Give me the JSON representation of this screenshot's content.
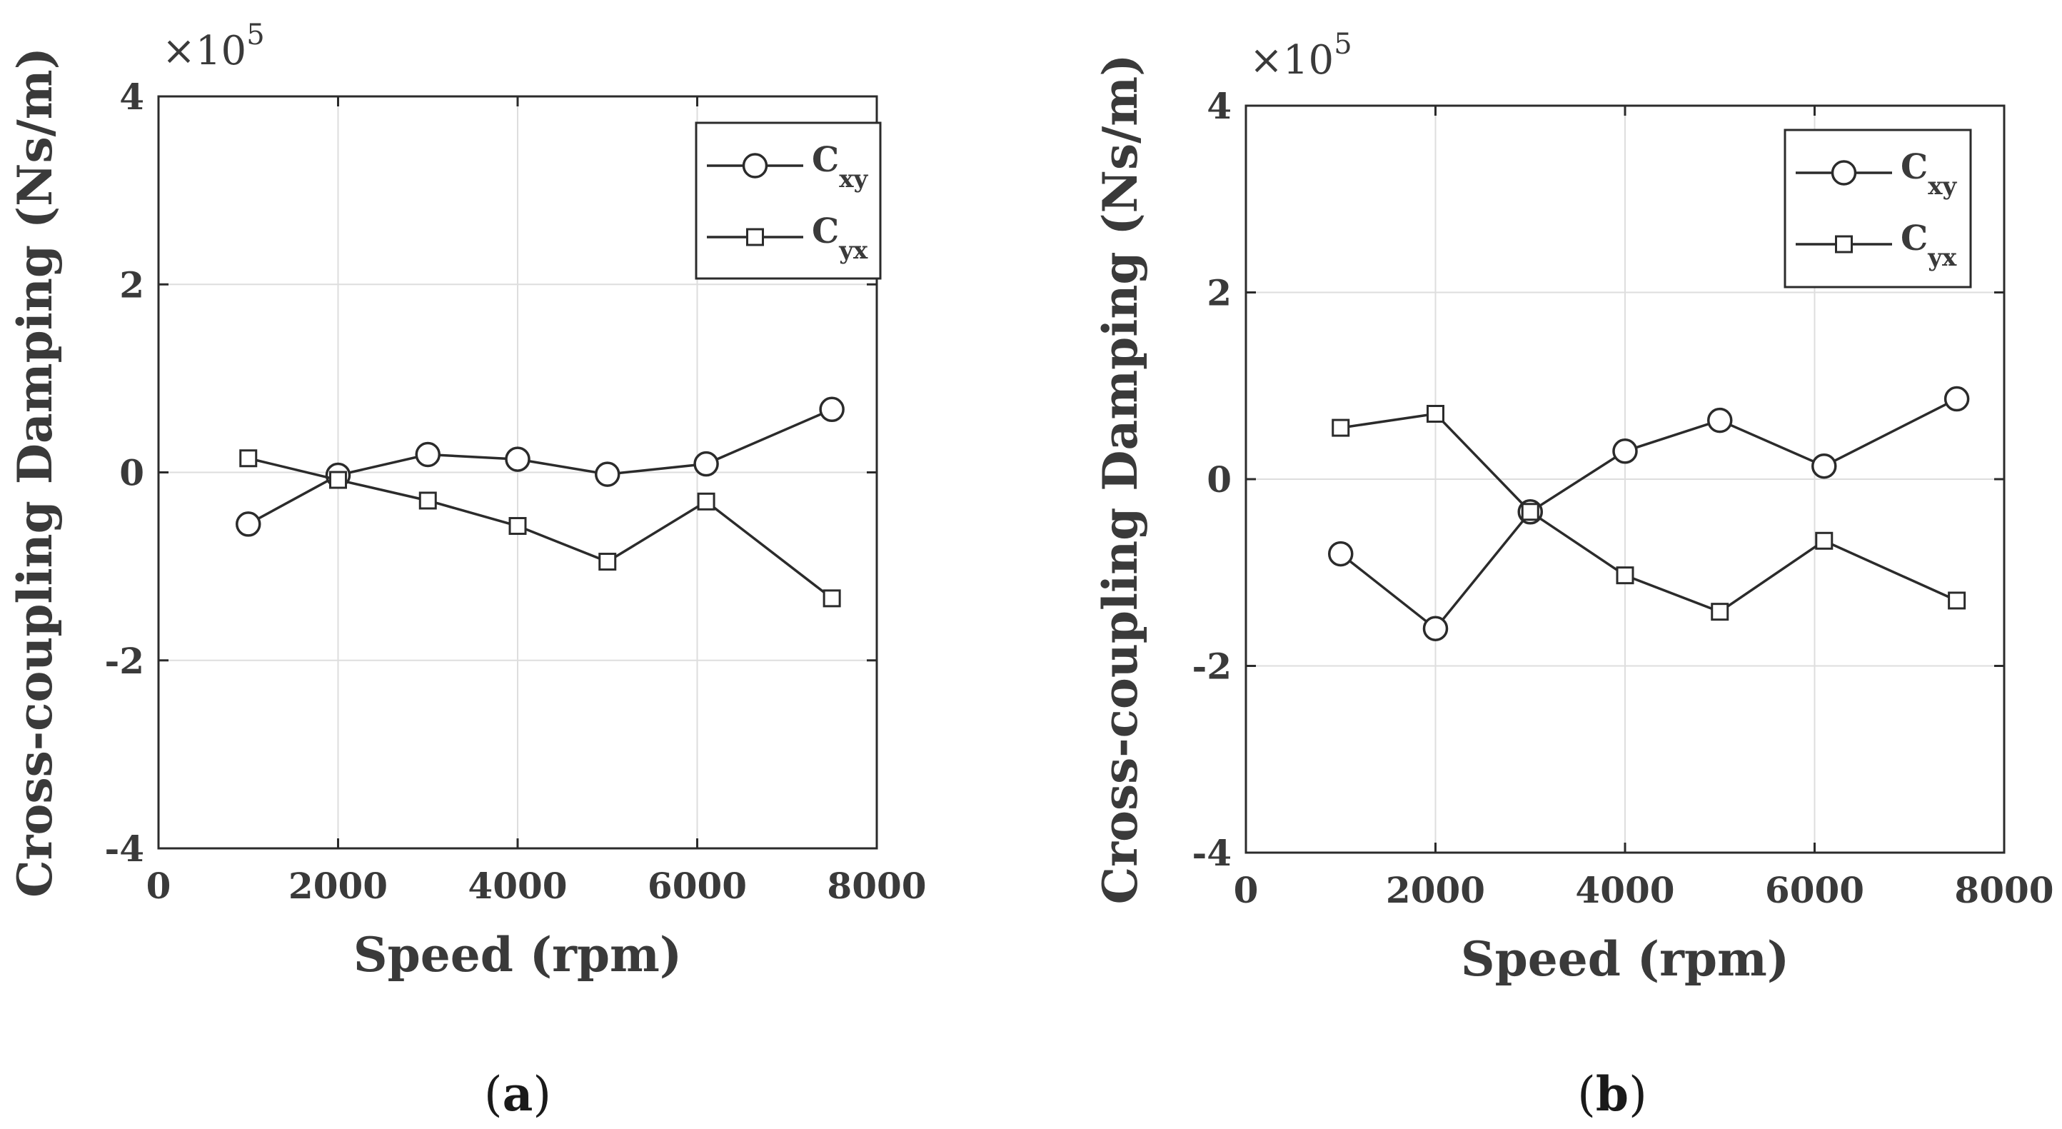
{
  "chart_data": [
    {
      "type": "line",
      "panel": "a",
      "caption_open": "(",
      "caption_letter": "a",
      "caption_close": ")",
      "xlabel": "Speed (rpm)",
      "ylabel": "Cross-coupling Damping (Ns/m)",
      "exponent_label": "×10",
      "exponent_power": "5",
      "xlim": [
        0,
        8000
      ],
      "ylim": [
        -4,
        4
      ],
      "xticks": [
        0,
        2000,
        4000,
        6000,
        8000
      ],
      "yticks": [
        -4,
        -2,
        0,
        2,
        4
      ],
      "grid": true,
      "legend_position": "top-right",
      "series": [
        {
          "name": "C",
          "sub": "xy",
          "marker": "circle",
          "x": [
            1000,
            2000,
            3000,
            4000,
            5000,
            6100,
            7500
          ],
          "y": [
            -0.55,
            -0.03,
            0.19,
            0.14,
            -0.02,
            0.09,
            0.67
          ]
        },
        {
          "name": "C",
          "sub": "yx",
          "marker": "square",
          "x": [
            1000,
            2000,
            3000,
            4000,
            5000,
            6100,
            7500
          ],
          "y": [
            0.15,
            -0.08,
            -0.3,
            -0.57,
            -0.95,
            -0.31,
            -1.34
          ]
        }
      ]
    },
    {
      "type": "line",
      "panel": "b",
      "caption_open": "(",
      "caption_letter": "b",
      "caption_close": ")",
      "xlabel": "Speed (rpm)",
      "ylabel": "Cross-coupling Damping (Ns/m)",
      "exponent_label": "×10",
      "exponent_power": "5",
      "xlim": [
        0,
        8000
      ],
      "ylim": [
        -4,
        4
      ],
      "xticks": [
        0,
        2000,
        4000,
        6000,
        8000
      ],
      "yticks": [
        -4,
        -2,
        0,
        2,
        4
      ],
      "grid": true,
      "legend_position": "top-right",
      "series": [
        {
          "name": "C",
          "sub": "xy",
          "marker": "circle",
          "x": [
            1000,
            2000,
            3000,
            4000,
            5000,
            6100,
            7500
          ],
          "y": [
            -0.8,
            -1.6,
            -0.35,
            0.3,
            0.63,
            0.14,
            0.86
          ]
        },
        {
          "name": "C",
          "sub": "yx",
          "marker": "square",
          "x": [
            1000,
            2000,
            3000,
            4000,
            5000,
            6100,
            7500
          ],
          "y": [
            0.55,
            0.7,
            -0.35,
            -1.03,
            -1.42,
            -0.66,
            -1.3
          ]
        }
      ]
    }
  ]
}
